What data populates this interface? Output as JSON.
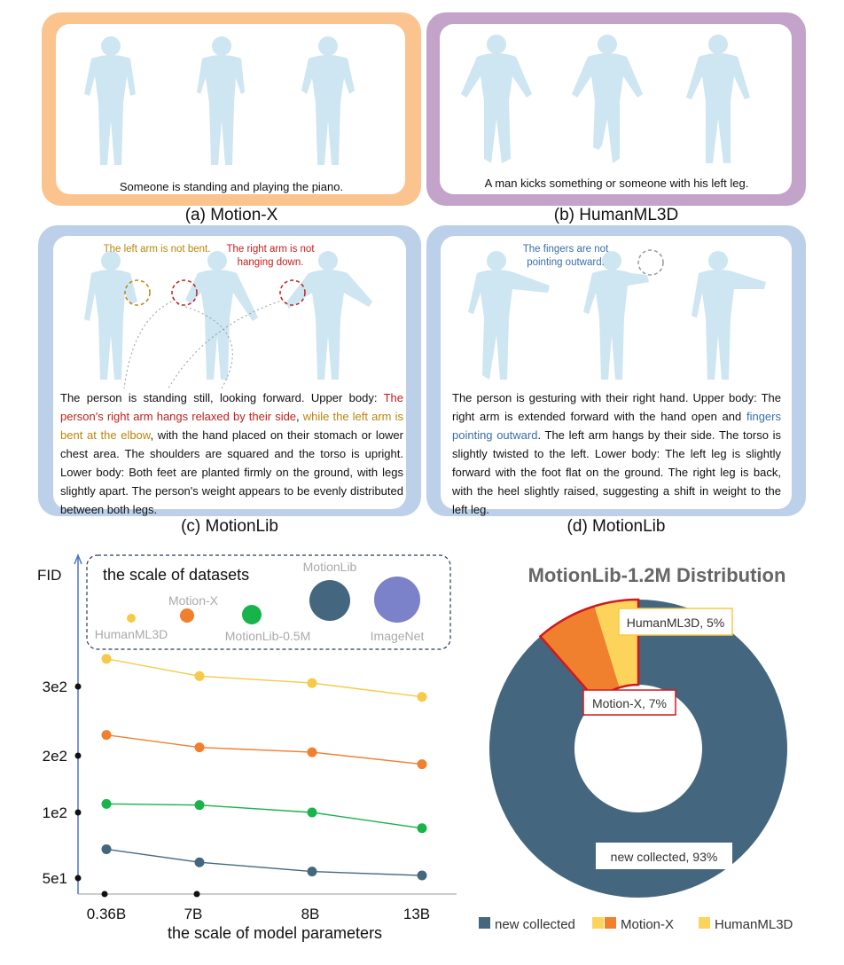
{
  "panels": {
    "a": {
      "caption": "(a) Motion-X",
      "text": "Someone is standing and playing the piano.",
      "border_color": "#fbc48f"
    },
    "b": {
      "caption": "(b) HumanML3D",
      "text": "A man kicks something or someone with his left leg.",
      "border_color": "#c3a3c9"
    },
    "c": {
      "caption": "(c) MotionLib",
      "border_color": "#bcd0ea",
      "annotations": [
        "The left arm is not bent.",
        "The right arm is not hanging down."
      ],
      "text_parts": [
        "The person is standing still, looking forward. Upper body: ",
        "The person's right arm hangs relaxed by their side",
        ", ",
        "while the left arm is bent at the elbow",
        ", with the hand placed on their stomach or lower chest area. The shoulders are squared and the torso is upright. Lower body: Both feet are planted firmly on the ground, with legs slightly apart. The person's weight appears to be evenly distributed between both legs."
      ]
    },
    "d": {
      "caption": "(d) MotionLib",
      "border_color": "#bcd0ea",
      "annotations": [
        "The fingers are not pointing outward."
      ],
      "text_parts": [
        "The person is gesturing with their right hand. Upper body: The right arm is extended forward with the hand open and ",
        "fingers pointing outward",
        ". The left arm hangs by their side. The torso is slightly twisted to the left. Lower body: The left leg is slightly forward with the foot flat on the ground. The right leg is back, with the heel slightly raised, suggesting a shift in weight to the left leg."
      ]
    }
  },
  "scatter": {
    "ylabel": "FID",
    "xlabel": "the scale of model parameters",
    "legend_title": "the scale of datasets",
    "legend_items": [
      "HumanML3D",
      "Motion-X",
      "MotionLib-0.5M",
      "MotionLib",
      "ImageNet"
    ]
  },
  "donut": {
    "title": "MotionLib-1.2M Distribution",
    "labels": [
      "HumanML3D, 5%",
      "Motion-X, 7%",
      "new collected, 93%"
    ],
    "legend": [
      "new collected",
      "Motion-X",
      "HumanML3D"
    ]
  },
  "chart_data": [
    {
      "type": "line",
      "title": "",
      "xlabel": "the scale of model parameters",
      "ylabel": "FID",
      "categories": [
        "0.36B",
        "7B",
        "8B",
        "13B"
      ],
      "yticks": [
        "5e1",
        "1e2",
        "2e2",
        "3e2"
      ],
      "series": [
        {
          "name": "HumanML3D",
          "color": "#f7c948",
          "values": [
            340,
            315,
            305,
            285
          ]
        },
        {
          "name": "Motion-X",
          "color": "#f07f2e",
          "values": [
            230,
            212,
            205,
            185
          ]
        },
        {
          "name": "MotionLib-0.5M",
          "color": "#18b34a",
          "values": [
            115,
            113,
            100,
            88
          ]
        },
        {
          "name": "MotionLib",
          "color": "#44677f",
          "values": [
            72,
            62,
            55,
            52
          ]
        }
      ],
      "legend": "top"
    },
    {
      "type": "pie",
      "title": "MotionLib-1.2M Distribution",
      "slices": [
        {
          "name": "new collected",
          "value": 93,
          "color": "#44677f"
        },
        {
          "name": "Motion-X",
          "value": 7,
          "color": "#f07f2e"
        },
        {
          "name": "HumanML3D",
          "value": 5,
          "color": "#fcd45c"
        }
      ],
      "legend": "bottom"
    }
  ]
}
